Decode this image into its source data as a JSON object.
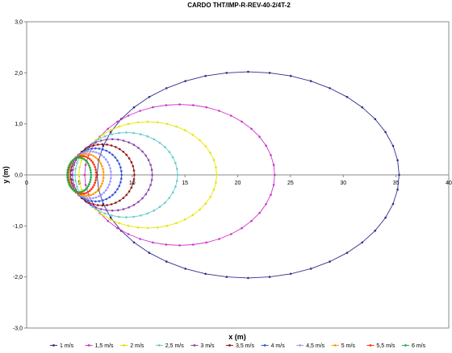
{
  "chart_data": {
    "type": "scatter",
    "title": "CARDO THT/IMP-R-REV-40-2/4T-2",
    "xlabel": "x (m)",
    "ylabel": "y (m)",
    "xlim": [
      0,
      40
    ],
    "ylim": [
      -3,
      3
    ],
    "x_ticks": [
      "0",
      "5",
      "10",
      "15",
      "20",
      "25",
      "30",
      "35",
      "40"
    ],
    "y_ticks": [
      "3,0",
      "2,0",
      "1,0",
      "0,0",
      "-1,0",
      "-2,0",
      "-3,0"
    ],
    "grid": false,
    "legend_position": "bottom",
    "series": [
      {
        "name": "1 m/s",
        "color": "#2e2e8c",
        "x0": 3.5,
        "xmax": 35.3,
        "ymax": 2.02
      },
      {
        "name": "1,5 m/s",
        "color": "#cc33cc",
        "x0": 3.5,
        "xmax": 23.5,
        "ymax": 1.38
      },
      {
        "name": "2 m/s",
        "color": "#e6e600",
        "x0": 3.5,
        "xmax": 18.0,
        "ymax": 1.04
      },
      {
        "name": "2,5 m/s",
        "color": "#66cccc",
        "x0": 3.5,
        "xmax": 14.3,
        "ymax": 0.83
      },
      {
        "name": "3 m/s",
        "color": "#8844aa",
        "x0": 3.5,
        "xmax": 11.9,
        "ymax": 0.7
      },
      {
        "name": "3,5 m/s",
        "color": "#8b1a1a",
        "x0": 3.5,
        "xmax": 10.2,
        "ymax": 0.6
      },
      {
        "name": "4 m/s",
        "color": "#3355dd",
        "x0": 3.5,
        "xmax": 9.0,
        "ymax": 0.52
      },
      {
        "name": "4,5 m/s",
        "color": "#9999ff",
        "x0": 3.6,
        "xmax": 8.0,
        "ymax": 0.46
      },
      {
        "name": "5 m/s",
        "color": "#ff9900",
        "x0": 3.6,
        "xmax": 7.3,
        "ymax": 0.41
      },
      {
        "name": "5,5 m/s",
        "color": "#ff3300",
        "x0": 3.6,
        "xmax": 6.6,
        "ymax": 0.37
      },
      {
        "name": "6 m/s",
        "color": "#22aa44",
        "x0": 3.6,
        "xmax": 6.1,
        "ymax": 0.34
      }
    ]
  }
}
